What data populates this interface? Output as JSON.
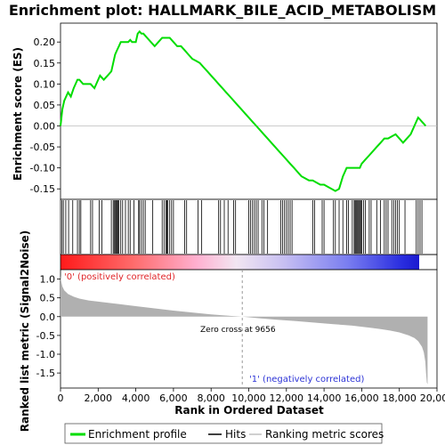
{
  "chart_data": [
    {
      "type": "line",
      "title": "Enrichment plot: HALLMARK_BILE_ACID_METABOLISM",
      "ylabel": "Enrichment score (ES)",
      "xlim": [
        0,
        19500
      ],
      "ylim": [
        -0.175,
        0.245
      ],
      "yticks": [
        "0.20",
        "0.15",
        "0.10",
        "0.05",
        "0.00",
        "-0.05",
        "-0.10",
        "-0.15"
      ],
      "ytick_values": [
        0.2,
        0.15,
        0.1,
        0.05,
        0.0,
        -0.05,
        -0.1,
        -0.15
      ],
      "series": [
        {
          "name": "Enrichment profile",
          "color": "#00dd00",
          "x": [
            0,
            100,
            200,
            300,
            400,
            550,
            700,
            800,
            900,
            1000,
            1200,
            1400,
            1600,
            1800,
            2000,
            2100,
            2300,
            2500,
            2700,
            2800,
            2900,
            3000,
            3100,
            3200,
            3300,
            3400,
            3500,
            3600,
            3700,
            3800,
            3900,
            4000,
            4100,
            4200,
            4300,
            4400,
            4600,
            4800,
            5000,
            5200,
            5400,
            5600,
            5800,
            6000,
            6200,
            6400,
            6600,
            6800,
            7000,
            7200,
            7400,
            7600,
            7800,
            8000,
            8200,
            8400,
            8600,
            8800,
            9000,
            9200,
            9400,
            9600,
            9800,
            10000,
            10200,
            10400,
            10600,
            10800,
            11000,
            11200,
            11400,
            11600,
            11800,
            12000,
            12200,
            12400,
            12600,
            12800,
            13000,
            13200,
            13400,
            13600,
            13800,
            14000,
            14200,
            14400,
            14600,
            14800,
            15000,
            15200,
            15400,
            15600,
            15700,
            15800,
            15900,
            16000,
            16200,
            16400,
            16600,
            16800,
            17000,
            17200,
            17400,
            17600,
            17800,
            18000,
            18200,
            18400,
            18600,
            18800,
            19000,
            19100,
            19200,
            19300,
            19400
          ],
          "values": [
            0.0,
            0.04,
            0.06,
            0.07,
            0.08,
            0.07,
            0.09,
            0.1,
            0.11,
            0.11,
            0.1,
            0.1,
            0.1,
            0.09,
            0.11,
            0.12,
            0.11,
            0.12,
            0.13,
            0.15,
            0.17,
            0.18,
            0.19,
            0.2,
            0.2,
            0.2,
            0.2,
            0.2,
            0.205,
            0.2,
            0.2,
            0.2,
            0.22,
            0.225,
            0.22,
            0.22,
            0.21,
            0.2,
            0.19,
            0.2,
            0.21,
            0.21,
            0.21,
            0.2,
            0.19,
            0.19,
            0.18,
            0.17,
            0.16,
            0.155,
            0.15,
            0.14,
            0.13,
            0.12,
            0.11,
            0.1,
            0.09,
            0.08,
            0.07,
            0.06,
            0.05,
            0.04,
            0.03,
            0.02,
            0.01,
            0.0,
            -0.01,
            -0.02,
            -0.03,
            -0.04,
            -0.05,
            -0.06,
            -0.07,
            -0.08,
            -0.09,
            -0.1,
            -0.11,
            -0.12,
            -0.125,
            -0.13,
            -0.13,
            -0.135,
            -0.14,
            -0.14,
            -0.145,
            -0.15,
            -0.155,
            -0.15,
            -0.12,
            -0.1,
            -0.1,
            -0.1,
            -0.1,
            -0.1,
            -0.1,
            -0.09,
            -0.08,
            -0.07,
            -0.06,
            -0.05,
            -0.04,
            -0.03,
            -0.03,
            -0.025,
            -0.02,
            -0.03,
            -0.04,
            -0.03,
            -0.02,
            0.0,
            0.02,
            0.015,
            0.01,
            0.005,
            0.0
          ]
        }
      ]
    },
    {
      "type": "hits",
      "description_none": "",
      "hits": [
        80,
        150,
        280,
        430,
        650,
        900,
        1000,
        1080,
        1600,
        1700,
        2050,
        2200,
        2700,
        2800,
        2850,
        2900,
        2950,
        3000,
        3050,
        3100,
        3200,
        3300,
        3450,
        3600,
        3700,
        3900,
        4150,
        4200,
        4300,
        4400,
        4500,
        4900,
        5400,
        5500,
        5600,
        5650,
        5700,
        5800,
        5900,
        6000,
        6600,
        6700,
        7300,
        7500,
        8400,
        8500,
        8700,
        8900,
        9200,
        9300,
        10000,
        10100,
        10200,
        10300,
        10400,
        10500,
        10700,
        10800,
        11000,
        11700,
        11800,
        11900,
        12000,
        12100,
        12200,
        12300,
        13400,
        13500,
        13900,
        14000,
        14500,
        14600,
        14800,
        15000,
        15200,
        15300,
        15500,
        15600,
        15650,
        15700,
        15750,
        15800,
        15850,
        15900,
        15950,
        16000,
        16100,
        16200,
        16400,
        16500,
        16800,
        17000,
        17200,
        17300,
        17400,
        17600,
        17700,
        17800,
        17900,
        18000,
        18300,
        18900,
        19000,
        19100,
        19200
      ]
    },
    {
      "type": "area",
      "ylabel": "Ranked list metric (Signal2Noise)",
      "xlabel": "Rank in Ordered Dataset",
      "xlim": [
        0,
        19500
      ],
      "ylim": [
        -1.9,
        1.25
      ],
      "yticks": [
        "1.0",
        "0.5",
        "0.0",
        "-0.5",
        "-1.0",
        "-1.5"
      ],
      "ytick_values": [
        1.0,
        0.5,
        0.0,
        -0.5,
        -1.0,
        -1.5
      ],
      "xticks": [
        "0",
        "2,000",
        "4,000",
        "6,000",
        "8,000",
        "10,000",
        "12,000",
        "14,000",
        "16,000",
        "18,000",
        "20,000"
      ],
      "xtick_values": [
        0,
        2000,
        4000,
        6000,
        8000,
        10000,
        12000,
        14000,
        16000,
        18000,
        20000
      ],
      "x": [
        0,
        20,
        50,
        100,
        200,
        400,
        700,
        1000,
        1500,
        2000,
        3000,
        4000,
        5000,
        6000,
        7000,
        8000,
        9000,
        9656,
        10500,
        11500,
        12500,
        13500,
        14500,
        15500,
        16500,
        17000,
        17500,
        18000,
        18500,
        18800,
        19000,
        19200,
        19300,
        19380,
        19420,
        19460,
        19500
      ],
      "values": [
        1.1,
        1.0,
        0.9,
        0.8,
        0.7,
        0.6,
        0.53,
        0.48,
        0.43,
        0.4,
        0.34,
        0.28,
        0.22,
        0.16,
        0.11,
        0.06,
        0.02,
        0.0,
        -0.04,
        -0.08,
        -0.12,
        -0.16,
        -0.2,
        -0.24,
        -0.3,
        -0.33,
        -0.37,
        -0.42,
        -0.5,
        -0.57,
        -0.65,
        -0.8,
        -0.95,
        -1.2,
        -1.5,
        -1.75,
        -1.8
      ]
    }
  ],
  "annotations": {
    "positive_label": "'0' (positively correlated)",
    "negative_label": "'1' (negatively correlated)",
    "zero_cross_label": "Zero cross at 9656",
    "zero_cross_value": 9656
  },
  "legend": {
    "items": [
      {
        "label": "Enrichment profile",
        "color": "#00dd00"
      },
      {
        "label": "Hits",
        "color": "#000000"
      },
      {
        "label": "Ranking metric scores",
        "color": "#c0c0c0"
      }
    ]
  },
  "colors": {
    "profile": "#00dd00",
    "metric_fill": "#b0b0b0",
    "positive": "#ff2020",
    "negative": "#2020ff"
  }
}
